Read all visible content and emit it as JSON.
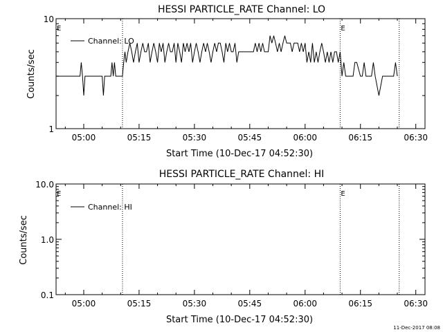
{
  "footer_timestamp": "11-Dec-2017 08:08",
  "chart_data": [
    {
      "type": "line",
      "title": "HESSI PARTICLE_RATE Channel: LO",
      "xlabel": "Start Time (10-Dec-17 04:52:30)",
      "ylabel": "Counts/sec",
      "y_scale": "log",
      "ylim": [
        1,
        10
      ],
      "y_ticks": [
        "1",
        "10"
      ],
      "x_ticks": [
        "05:00",
        "05:15",
        "05:30",
        "05:45",
        "06:00",
        "06:15",
        "06:30"
      ],
      "xlim": [
        "04:52:30",
        "06:32:30"
      ],
      "legend": "top-left",
      "event_markers": [
        {
          "time": "04:52:30",
          "label": "E"
        },
        {
          "time": "05:10:30",
          "label": ""
        },
        {
          "time": "06:09:30",
          "label": "E"
        },
        {
          "time": "06:25:30",
          "label": ""
        }
      ],
      "series": [
        {
          "name": "Channel: LO",
          "x": [
            "04:52:30",
            "04:59:00",
            "04:59:20",
            "04:59:40",
            "05:00:00",
            "05:00:20",
            "05:00:40",
            "05:01:00",
            "05:02:00",
            "05:05:00",
            "05:05:20",
            "05:05:40",
            "05:06:00",
            "05:07:00",
            "05:07:20",
            "05:07:40",
            "05:08:00",
            "05:08:20",
            "05:08:40",
            "05:10:30",
            "05:10:50",
            "05:11:10",
            "05:11:30",
            "05:12:00",
            "05:12:30",
            "05:13:00",
            "05:13:30",
            "05:14:00",
            "05:14:30",
            "05:15:00",
            "05:15:30",
            "05:16:00",
            "05:16:30",
            "05:17:00",
            "05:17:30",
            "05:18:00",
            "05:18:30",
            "05:19:00",
            "05:19:30",
            "05:20:00",
            "05:20:30",
            "05:21:00",
            "05:21:30",
            "05:22:00",
            "05:22:30",
            "05:23:00",
            "05:23:30",
            "05:24:00",
            "05:24:30",
            "05:25:00",
            "05:25:30",
            "05:26:00",
            "05:26:30",
            "05:27:00",
            "05:27:30",
            "05:28:00",
            "05:28:30",
            "05:29:00",
            "05:29:30",
            "05:30:00",
            "05:30:30",
            "05:31:00",
            "05:31:30",
            "05:32:00",
            "05:32:30",
            "05:33:00",
            "05:33:30",
            "05:34:00",
            "05:34:30",
            "05:35:00",
            "05:35:30",
            "05:36:00",
            "05:36:30",
            "05:37:00",
            "05:37:30",
            "05:38:00",
            "05:38:30",
            "05:39:00",
            "05:39:30",
            "05:40:00",
            "05:40:30",
            "05:41:00",
            "05:41:30",
            "05:42:00",
            "05:43:00",
            "05:44:00",
            "05:45:00",
            "05:46:00",
            "05:46:30",
            "05:47:00",
            "05:47:30",
            "05:48:00",
            "05:48:30",
            "05:49:00",
            "05:50:00",
            "05:50:30",
            "05:51:00",
            "05:51:30",
            "05:52:00",
            "05:52:30",
            "05:53:00",
            "05:53:30",
            "05:54:00",
            "05:54:30",
            "05:55:00",
            "05:55:30",
            "05:56:00",
            "05:56:30",
            "05:57:00",
            "05:57:30",
            "05:58:00",
            "05:58:30",
            "05:59:00",
            "05:59:30",
            "06:00:00",
            "06:00:30",
            "06:01:00",
            "06:01:30",
            "06:02:00",
            "06:02:30",
            "06:03:00",
            "06:03:30",
            "06:04:00",
            "06:04:30",
            "06:05:00",
            "06:05:30",
            "06:06:00",
            "06:06:30",
            "06:07:00",
            "06:07:30",
            "06:08:00",
            "06:08:30",
            "06:09:00",
            "06:09:30",
            "06:10:00",
            "06:10:30",
            "06:11:00",
            "06:13:00",
            "06:13:30",
            "06:14:00",
            "06:15:00",
            "06:15:30",
            "06:16:00",
            "06:16:30",
            "06:17:00",
            "06:18:00",
            "06:18:30",
            "06:19:00",
            "06:20:00",
            "06:21:00",
            "06:22:00",
            "06:23:00",
            "06:24:00",
            "06:24:30",
            "06:25:00"
          ],
          "y": [
            3,
            3,
            4,
            3,
            2,
            3,
            3,
            3,
            3,
            3,
            2,
            3,
            3,
            3,
            3,
            4,
            3,
            4,
            3,
            3,
            4,
            5,
            4,
            5,
            6,
            5,
            4,
            5,
            6,
            4,
            5,
            6,
            5,
            5,
            6,
            4,
            5,
            6,
            5,
            4,
            6,
            5,
            6,
            4,
            5,
            6,
            5,
            5,
            6,
            4,
            6,
            5,
            4,
            6,
            5,
            6,
            5,
            6,
            4,
            5,
            6,
            5,
            4,
            5,
            6,
            5,
            6,
            5,
            4,
            5,
            6,
            5,
            6,
            6,
            5,
            4,
            6,
            5,
            6,
            5,
            5,
            6,
            4,
            5,
            5,
            5,
            5,
            5,
            6,
            5,
            6,
            5,
            6,
            5,
            5,
            7,
            6,
            7,
            6,
            5,
            6,
            5,
            6,
            7,
            6,
            6,
            6,
            5,
            6,
            6,
            6,
            5,
            6,
            5,
            6,
            4,
            5,
            4,
            6,
            4,
            5,
            4,
            5,
            6,
            5,
            4,
            5,
            4,
            5,
            4,
            5,
            5,
            4,
            5,
            3,
            4,
            3,
            3,
            4,
            4,
            3,
            3,
            4,
            3,
            3,
            3,
            4,
            3,
            2,
            3,
            3,
            3,
            3,
            4,
            3
          ]
        }
      ]
    },
    {
      "type": "line",
      "title": "HESSI PARTICLE_RATE Channel: HI",
      "xlabel": "Start Time (10-Dec-17 04:52:30)",
      "ylabel": "Counts/sec",
      "y_scale": "log",
      "ylim": [
        0.1,
        10
      ],
      "y_ticks": [
        "0.1",
        "1.0",
        "10.0"
      ],
      "x_ticks": [
        "05:00",
        "05:15",
        "05:30",
        "05:45",
        "06:00",
        "06:15",
        "06:30"
      ],
      "xlim": [
        "04:52:30",
        "06:32:30"
      ],
      "legend": "top-left",
      "event_markers": [
        {
          "time": "04:52:30",
          "label": "E"
        },
        {
          "time": "05:10:30",
          "label": ""
        },
        {
          "time": "06:09:30",
          "label": "E"
        },
        {
          "time": "06:25:30",
          "label": ""
        }
      ],
      "series": [
        {
          "name": "Channel: HI",
          "x": [],
          "y": []
        }
      ]
    }
  ]
}
